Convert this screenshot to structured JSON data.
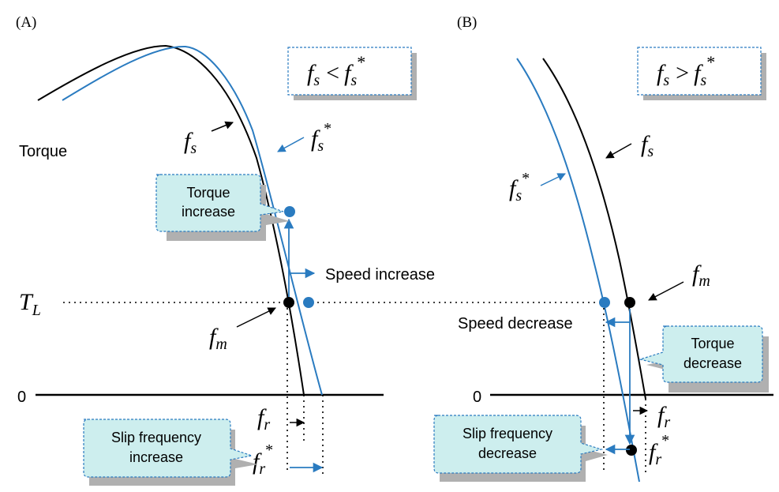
{
  "panels": [
    {
      "panel_label": "(A)",
      "condition_lhs": "f",
      "condition_lhs_sub": "s",
      "condition_op": "<",
      "condition_rhs": "f",
      "condition_rhs_sub": "s",
      "condition_rhs_sup": "*",
      "y_axis_label": "Torque",
      "load_label": "T",
      "load_label_sub": "L",
      "zero_label": "0",
      "curve_fs_label": "f",
      "curve_fs_sub": "s",
      "curve_fs_star_label": "f",
      "curve_fs_star_sub": "s",
      "curve_fs_star_sup": "*",
      "point_fm_label": "f",
      "point_fm_sub": "m",
      "fr_label": "f",
      "fr_sub": "r",
      "fr_star_label": "f",
      "fr_star_sub": "r",
      "fr_star_sup": "*",
      "speed_label": "Speed increase",
      "torque_callout": [
        "Torque",
        "increase"
      ],
      "slip_callout": [
        "Slip frequency",
        "increase"
      ]
    },
    {
      "panel_label": "(B)",
      "condition_lhs": "f",
      "condition_lhs_sub": "s",
      "condition_op": ">",
      "condition_rhs": "f",
      "condition_rhs_sub": "s",
      "condition_rhs_sup": "*",
      "zero_label": "0",
      "curve_fs_label": "f",
      "curve_fs_sub": "s",
      "curve_fs_star_label": "f",
      "curve_fs_star_sub": "s",
      "curve_fs_star_sup": "*",
      "point_fm_label": "f",
      "point_fm_sub": "m",
      "fr_label": "f",
      "fr_sub": "r",
      "fr_star_label": "f",
      "fr_star_sub": "r",
      "fr_star_sup": "*",
      "speed_label": "Speed decrease",
      "torque_callout": [
        "Torque",
        "decrease"
      ],
      "slip_callout": [
        "Slip frequency",
        "decrease"
      ]
    }
  ],
  "colors": {
    "curve_black": "#000000",
    "curve_blue": "#2a7bc0",
    "callout_fill": "#cdeeee",
    "callout_border": "#2a7bc0",
    "shadow": "#aaaaaa"
  }
}
